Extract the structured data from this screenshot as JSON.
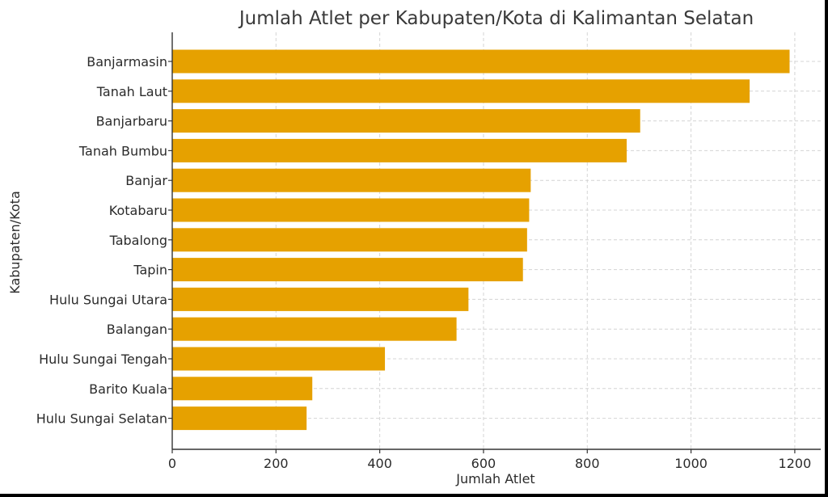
{
  "chart_data": {
    "type": "bar",
    "orientation": "horizontal",
    "title": "Jumlah Atlet per Kabupaten/Kota di Kalimantan Selatan",
    "xlabel": "Jumlah Atlet",
    "ylabel": "Kabupaten/Kota",
    "xlim": [
      0,
      1250
    ],
    "xticks": [
      0,
      200,
      400,
      600,
      800,
      1000,
      1200
    ],
    "grid": true,
    "bar_color": "#e6a100",
    "categories": [
      "Banjarmasin",
      "Tanah Laut",
      "Banjarbaru",
      "Tanah Bumbu",
      "Banjar",
      "Kotabaru",
      "Tabalong",
      "Tapin",
      "Hulu Sungai Utara",
      "Balangan",
      "Hulu Sungai Tengah",
      "Barito Kuala",
      "Hulu Sungai Selatan"
    ],
    "values": [
      1190,
      1113,
      902,
      876,
      691,
      688,
      684,
      676,
      571,
      548,
      410,
      270,
      259
    ]
  }
}
